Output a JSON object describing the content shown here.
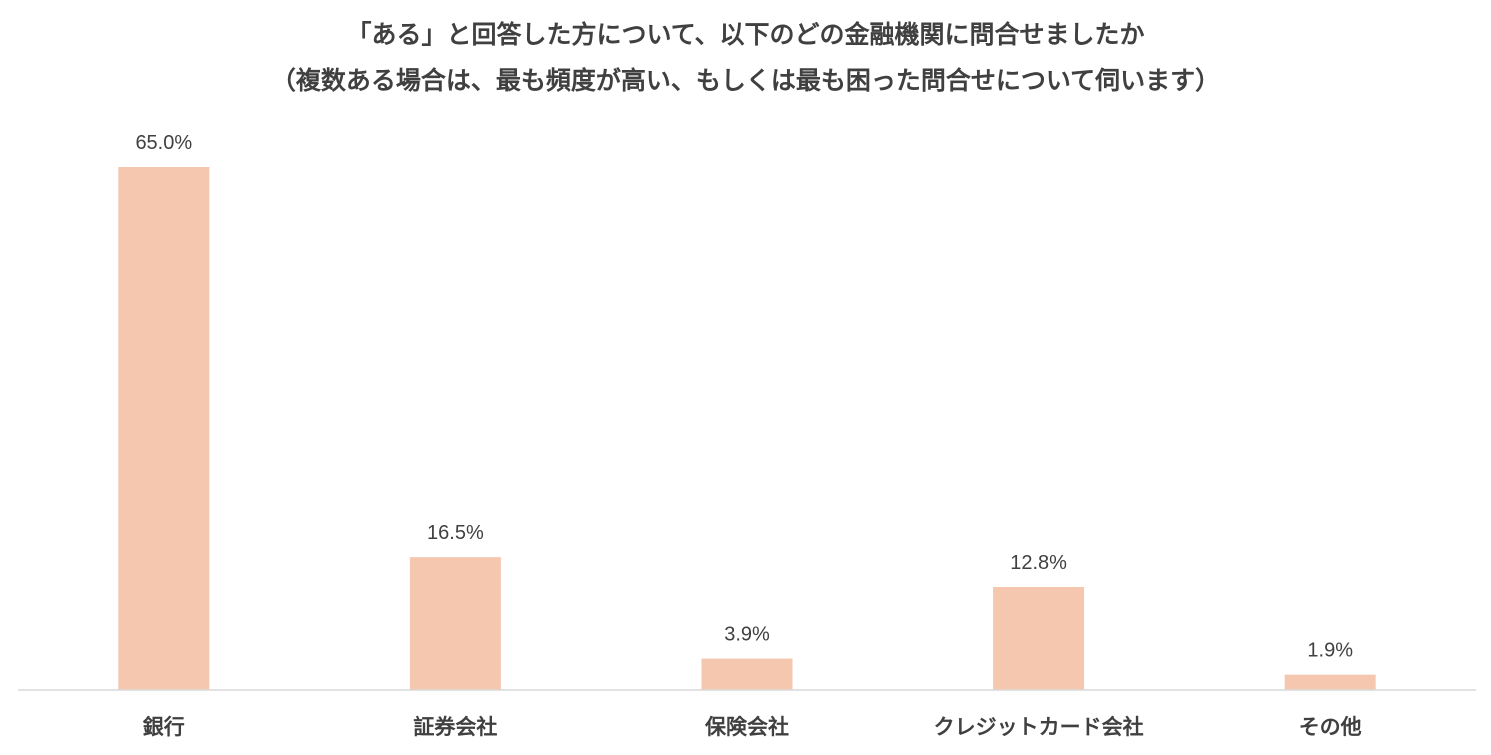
{
  "chart_data": {
    "type": "bar",
    "title_lines": [
      "「ある」と回答した方について、以下のどの金融機関に問合せましたか",
      "（複数ある場合は、最も頻度が高い、もしくは最も困った問合せについて伺います）"
    ],
    "categories": [
      "銀行",
      "証券会社",
      "保険会社",
      "クレジットカード会社",
      "その他"
    ],
    "values": [
      65.0,
      16.5,
      3.9,
      12.8,
      1.9
    ],
    "value_labels": [
      "65.0%",
      "16.5%",
      "3.9%",
      "12.8%",
      "1.9%"
    ],
    "ylim": [
      0,
      65
    ],
    "bar_color": "#F4C7AE",
    "axis_color": "#D9D9D9",
    "text_color": "#404040",
    "grid": false,
    "legend": "none"
  }
}
